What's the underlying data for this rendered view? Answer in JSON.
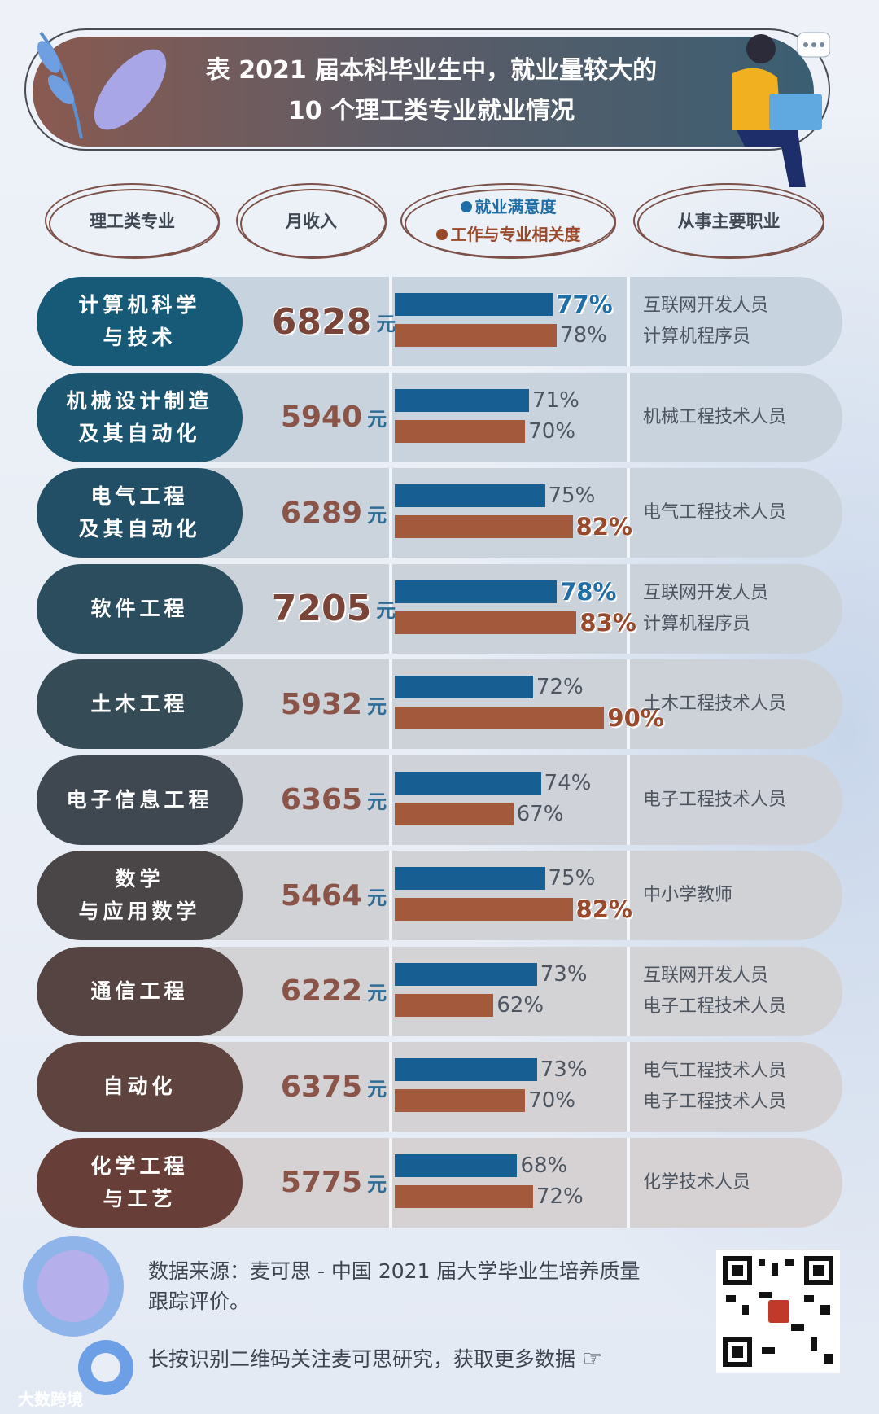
{
  "title": {
    "line1": "表  2021 届本科毕业生中，就业量较大的",
    "line2": "10 个理工类专业就业情况"
  },
  "headers": {
    "major": "理工类专业",
    "income": "月收入",
    "legend_satisfaction": "就业满意度",
    "legend_relevance": "工作与专业相关度",
    "occupation": "从事主要职业"
  },
  "colors": {
    "satisfaction": "#175f93",
    "relevance": "#a35a3c"
  },
  "unit": "元",
  "chart_data": {
    "type": "bar",
    "categories": [
      "计算机科学与技术",
      "机械设计制造及其自动化",
      "电气工程及其自动化",
      "软件工程",
      "土木工程",
      "电子信息工程",
      "数学与应用数学",
      "通信工程",
      "自动化",
      "化学工程与工艺"
    ],
    "series": [
      {
        "name": "就业满意度",
        "values": [
          77,
          71,
          75,
          78,
          72,
          74,
          75,
          73,
          73,
          68
        ]
      },
      {
        "name": "工作与专业相关度",
        "values": [
          78,
          70,
          82,
          83,
          90,
          67,
          82,
          62,
          70,
          72
        ]
      }
    ],
    "income": [
      6828,
      5940,
      6289,
      7205,
      5932,
      6365,
      5464,
      6222,
      6375,
      5775
    ]
  },
  "rows": [
    {
      "major_line1": "计算机科学",
      "major_line2": "与技术",
      "income": "6828",
      "sat": "77%",
      "rel": "78%",
      "job1": "互联网开发人员",
      "job2": "计算机程序员"
    },
    {
      "major_line1": "机械设计制造",
      "major_line2": "及其自动化",
      "income": "5940",
      "sat": "71%",
      "rel": "70%",
      "job1": "机械工程技术人员",
      "job2": ""
    },
    {
      "major_line1": "电气工程",
      "major_line2": "及其自动化",
      "income": "6289",
      "sat": "75%",
      "rel": "82%",
      "job1": "电气工程技术人员",
      "job2": ""
    },
    {
      "major_line1": "软件工程",
      "major_line2": "",
      "income": "7205",
      "sat": "78%",
      "rel": "83%",
      "job1": "互联网开发人员",
      "job2": "计算机程序员"
    },
    {
      "major_line1": "土木工程",
      "major_line2": "",
      "income": "5932",
      "sat": "72%",
      "rel": "90%",
      "job1": "土木工程技术人员",
      "job2": ""
    },
    {
      "major_line1": "电子信息工程",
      "major_line2": "",
      "income": "6365",
      "sat": "74%",
      "rel": "67%",
      "job1": "电子工程技术人员",
      "job2": ""
    },
    {
      "major_line1": "数学",
      "major_line2": "与应用数学",
      "income": "5464",
      "sat": "75%",
      "rel": "82%",
      "job1": "中小学教师",
      "job2": ""
    },
    {
      "major_line1": "通信工程",
      "major_line2": "",
      "income": "6222",
      "sat": "73%",
      "rel": "62%",
      "job1": "互联网开发人员",
      "job2": "电子工程技术人员"
    },
    {
      "major_line1": "自动化",
      "major_line2": "",
      "income": "6375",
      "sat": "73%",
      "rel": "70%",
      "job1": "电气工程技术人员",
      "job2": "电子工程技术人员"
    },
    {
      "major_line1": "化学工程",
      "major_line2": "与工艺",
      "income": "5775",
      "sat": "68%",
      "rel": "72%",
      "job1": "化学技术人员",
      "job2": ""
    }
  ],
  "footer": {
    "source_line1": "数据来源：麦可思 - 中国 2021 届大学毕业生培养质量",
    "source_line2": "跟踪评价。",
    "cta": "长按识别二维码关注麦可思研究，获取更多数据",
    "brand": "大数跨境"
  }
}
